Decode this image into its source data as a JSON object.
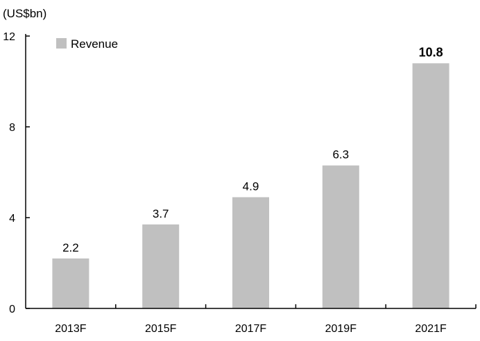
{
  "chart_data": {
    "type": "bar",
    "ylabel": "(US$bn)",
    "categories": [
      "2013F",
      "2015F",
      "2017F",
      "2019F",
      "2021F"
    ],
    "series": [
      {
        "name": "Revenue",
        "values": [
          2.2,
          3.7,
          4.9,
          6.3,
          10.8
        ]
      }
    ],
    "data_labels": [
      "2.2",
      "3.7",
      "4.9",
      "6.3",
      "10.8"
    ],
    "highlight_last_label": true,
    "ylim": [
      0,
      12
    ],
    "yticks": [
      0,
      4,
      8,
      12
    ],
    "ytick_labels": [
      "0",
      "4",
      "8",
      "12"
    ],
    "grid": false,
    "legend_position": "top-left",
    "bar_color": "#c0c0c0",
    "axis_color": "#000000"
  }
}
